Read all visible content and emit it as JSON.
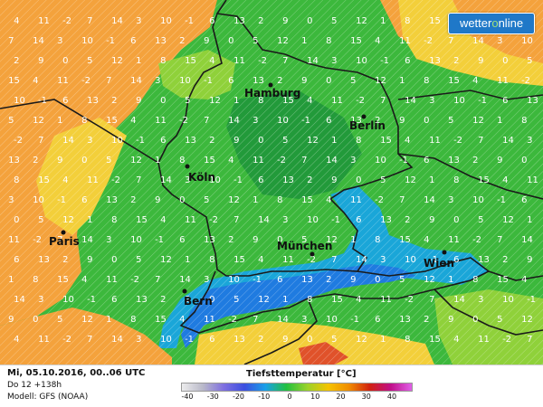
{
  "brand": {
    "prefix": "wetter",
    "accent": "o",
    "suffix": "nline"
  },
  "cities": [
    {
      "name": "Hamburg"
    },
    {
      "name": "Berlin"
    },
    {
      "name": "Köln"
    },
    {
      "name": "Paris"
    },
    {
      "name": "München"
    },
    {
      "name": "Wien"
    },
    {
      "name": "Bern"
    }
  ],
  "footer": {
    "date": "Mi, 05.10.2016, 00..06 UTC",
    "run": "Do 12 +138h",
    "model": "Modell: GFS (NOAA)"
  },
  "legend": {
    "title": "Tiefsttemperatur [°C]",
    "ticks": [
      "-40",
      "-30",
      "-20",
      "-10",
      "0",
      "10",
      "20",
      "30",
      "40"
    ],
    "colors": [
      "#ececec",
      "#b9b9c9",
      "#7f6fe0",
      "#3c4fe0",
      "#1aa0e8",
      "#22c040",
      "#9ad22a",
      "#f5c400",
      "#f08c00",
      "#d02010",
      "#c0108a",
      "#e060e8"
    ]
  },
  "colors": {
    "orange": "#f4a23c",
    "yellow": "#f3cf3a",
    "lime": "#8fd13a",
    "green": "#3cb83c",
    "dark_green": "#229a3a",
    "cyan": "#1aa6d8",
    "blue": "#1f7be0",
    "red": "#e0522a"
  }
}
